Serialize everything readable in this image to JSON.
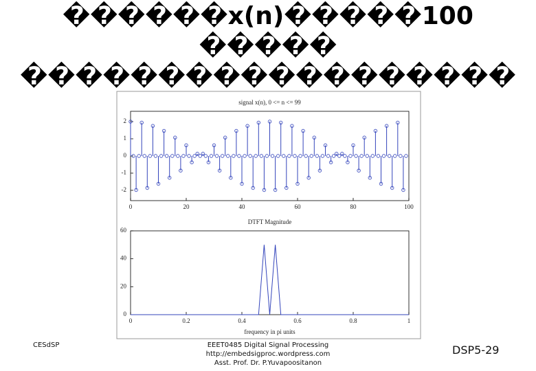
{
  "slide": {
    "title": [
      "������x(n)�����100",
      "�����",
      "������������������"
    ],
    "footer_left": "CESdSP",
    "footer_center": [
      "EEET0485 Digital Signal Processing",
      "http://embedsigproc.wordpress.com",
      "Asst. Prof. Dr. P.Yuvapoositanon"
    ],
    "footer_right": "DSP5-29"
  },
  "chart_data": [
    {
      "type": "stem",
      "title": "signal x(n), 0 <= n <= 99",
      "color": "#3344bb",
      "x": [
        0,
        1,
        2,
        3,
        4,
        5,
        6,
        7,
        8,
        9,
        10,
        11,
        12,
        13,
        14,
        15,
        16,
        17,
        18,
        19,
        20,
        21,
        22,
        23,
        24,
        25,
        26,
        27,
        28,
        29,
        30,
        31,
        32,
        33,
        34,
        35,
        36,
        37,
        38,
        39,
        40,
        41,
        42,
        43,
        44,
        45,
        46,
        47,
        48,
        49,
        50,
        51,
        52,
        53,
        54,
        55,
        56,
        57,
        58,
        59,
        60,
        61,
        62,
        63,
        64,
        65,
        66,
        67,
        68,
        69,
        70,
        71,
        72,
        73,
        74,
        75,
        76,
        77,
        78,
        79,
        80,
        81,
        82,
        83,
        84,
        85,
        86,
        87,
        88,
        89,
        90,
        91,
        92,
        93,
        94,
        95,
        96,
        97,
        98,
        99
      ],
      "values": [
        2,
        0,
        -1.98,
        0,
        1.94,
        0,
        -1.86,
        0,
        1.75,
        0,
        -1.62,
        0,
        1.46,
        0,
        -1.27,
        0,
        1.07,
        0,
        -0.85,
        0,
        0.62,
        0,
        -0.37,
        0,
        0.13,
        0,
        0.13,
        0,
        -0.37,
        0,
        0.62,
        0,
        -0.85,
        0,
        1.07,
        0,
        -1.27,
        0,
        1.46,
        0,
        -1.62,
        0,
        1.75,
        0,
        -1.86,
        0,
        1.94,
        0,
        -1.98,
        0,
        2,
        0,
        -1.98,
        0,
        1.94,
        0,
        -1.86,
        0,
        1.75,
        0,
        -1.62,
        0,
        1.46,
        0,
        -1.27,
        0,
        1.07,
        0,
        -0.85,
        0,
        0.62,
        0,
        -0.37,
        0,
        0.13,
        0,
        0.13,
        0,
        -0.37,
        0,
        0.62,
        0,
        -0.85,
        0,
        1.07,
        0,
        -1.27,
        0,
        1.46,
        0,
        -1.62,
        0,
        1.75,
        0,
        -1.86,
        0,
        1.94,
        0,
        -1.98,
        0
      ],
      "xlim": [
        0,
        100
      ],
      "xticks": [
        0,
        20,
        40,
        60,
        80,
        100
      ],
      "ylim": [
        -2.6,
        2.6
      ],
      "yticks": [
        -2,
        -1,
        0,
        1,
        2
      ]
    },
    {
      "type": "line",
      "title": "DTFT Magnitude",
      "x_label": "frequency in pi units",
      "color": "#3344bb",
      "x": [
        0,
        0.02,
        0.04,
        0.06,
        0.08,
        0.1,
        0.12,
        0.14,
        0.16,
        0.18,
        0.2,
        0.22,
        0.24,
        0.26,
        0.28,
        0.3,
        0.32,
        0.34,
        0.36,
        0.38,
        0.4,
        0.42,
        0.44,
        0.46,
        0.48,
        0.5,
        0.52,
        0.54,
        0.56,
        0.58,
        0.6,
        0.62,
        0.64,
        0.66,
        0.68,
        0.7,
        0.72,
        0.74,
        0.76,
        0.78,
        0.8,
        0.82,
        0.84,
        0.86,
        0.88,
        0.9,
        0.92,
        0.94,
        0.96,
        0.98,
        1
      ],
      "values": [
        0,
        0,
        0,
        0,
        0,
        0,
        0,
        0,
        0,
        0,
        0,
        0,
        0,
        0,
        0,
        0,
        0,
        0,
        0,
        0,
        0,
        0,
        0,
        0,
        50,
        0,
        50,
        0,
        0,
        0,
        0,
        0,
        0,
        0,
        0,
        0,
        0,
        0,
        0,
        0,
        0,
        0,
        0,
        0,
        0,
        0,
        0,
        0,
        0,
        0,
        0
      ],
      "xlim": [
        0,
        1
      ],
      "xticks": [
        0,
        0.2,
        0.4,
        0.6,
        0.8,
        1
      ],
      "ylim": [
        0,
        60
      ],
      "yticks": [
        0,
        20,
        40,
        60
      ]
    }
  ]
}
